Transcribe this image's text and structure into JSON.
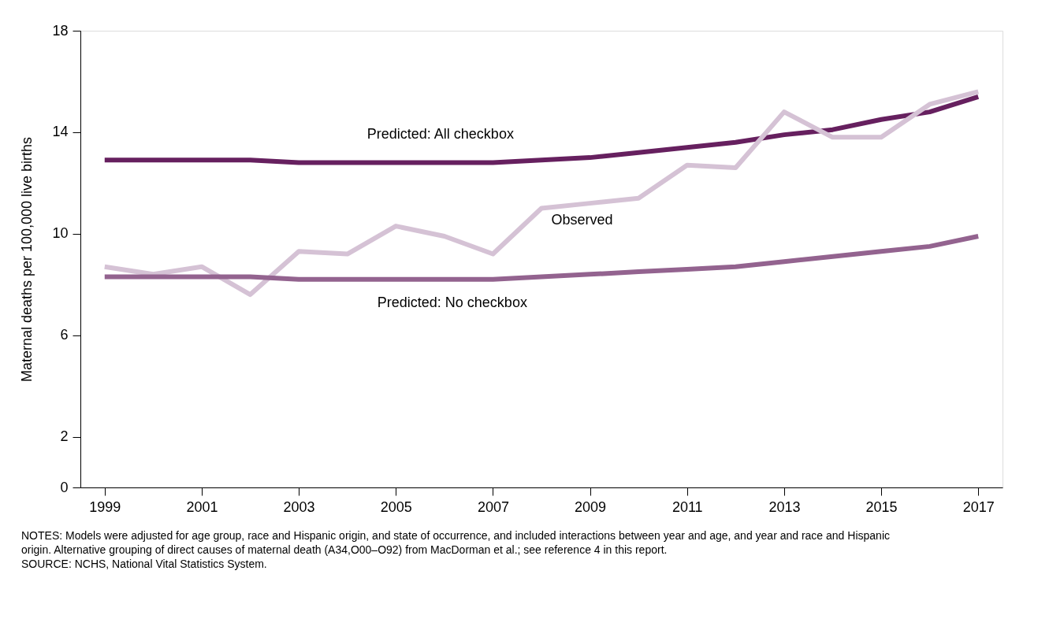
{
  "chart_data": {
    "type": "line",
    "ylabel": "Maternal deaths per 100,000 live births",
    "x": [
      1999,
      2000,
      2001,
      2002,
      2003,
      2004,
      2005,
      2006,
      2007,
      2008,
      2009,
      2010,
      2011,
      2012,
      2013,
      2014,
      2015,
      2016,
      2017
    ],
    "series": [
      {
        "name": "Predicted: All checkbox",
        "color": "#66205f",
        "values": [
          12.9,
          12.9,
          12.9,
          12.9,
          12.8,
          12.8,
          12.8,
          12.8,
          12.8,
          12.9,
          13.0,
          13.2,
          13.4,
          13.6,
          13.9,
          14.1,
          14.5,
          14.8,
          15.4
        ]
      },
      {
        "name": "Observed",
        "color": "#d5c2d5",
        "values": [
          8.7,
          8.4,
          8.7,
          7.6,
          9.3,
          9.2,
          10.3,
          9.9,
          9.2,
          11.0,
          11.2,
          11.4,
          12.7,
          12.6,
          14.8,
          13.8,
          13.8,
          15.1,
          15.6
        ]
      },
      {
        "name": "Predicted: No checkbox",
        "color": "#93638f",
        "values": [
          8.3,
          8.3,
          8.3,
          8.3,
          8.2,
          8.2,
          8.2,
          8.2,
          8.2,
          8.3,
          8.4,
          8.5,
          8.6,
          8.7,
          8.9,
          9.1,
          9.3,
          9.5,
          9.9
        ]
      }
    ],
    "xlim": [
      1998.5,
      2017.5
    ],
    "xticks": [
      1999,
      2001,
      2003,
      2005,
      2007,
      2009,
      2011,
      2013,
      2015,
      2017
    ],
    "ylim": [
      0,
      18
    ],
    "yticks": [
      0,
      2,
      6,
      10,
      14,
      18
    ],
    "grid": false,
    "marker": "none",
    "line_style": "solid",
    "annotations": [
      "NOTES: Models were adjusted for age group, race and Hispanic origin, and state of occurrence, and included interactions between year and age, and year and race and Hispanic",
      "origin. Alternative grouping of direct causes of maternal death (A34,O00–O92) from MacDorman et al.; see reference 4 in this report.",
      "SOURCE: NCHS, National Vital Statistics System."
    ]
  }
}
